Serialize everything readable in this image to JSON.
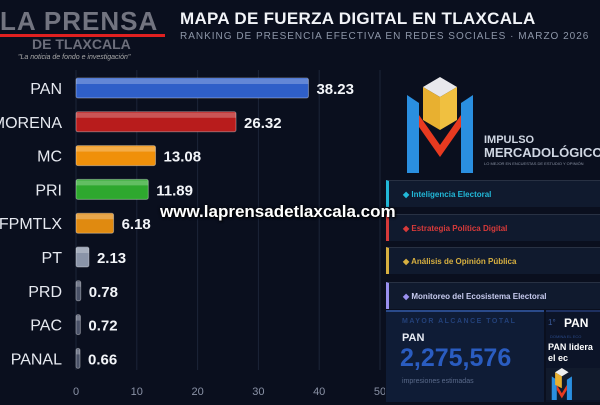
{
  "header": {
    "title": "MAPA DE FUERZA DIGITAL EN TLAXCALA",
    "subtitle": "RANKING DE PRESENCIA EFECTIVA EN REDES SOCIALES · MARZO 2026"
  },
  "watermark": {
    "brand": "LA PRENSA",
    "brand2": "DE TLAXCALA",
    "tagline": "\"La noticia de fondo e investigación\"",
    "site": "www.laprensadetlaxcala.com"
  },
  "logo": {
    "line1": "IMPULSO",
    "line2": "MERCADOLÓGICO",
    "tagline": "LO MEJOR EN ENCUESTAS DE ESTUDIO Y OPINIÓN"
  },
  "services": [
    {
      "label": "Inteligencia Electoral",
      "color": "#22b8d8"
    },
    {
      "label": "Estrategia Política Digital",
      "color": "#d83a3a"
    },
    {
      "label": "Análisis de Opinión Pública",
      "color": "#d8b040"
    },
    {
      "label": "Monitoreo del Ecosistema Electoral",
      "color": "#9a90f0"
    }
  ],
  "kpi": {
    "label": "MAYOR ALCANCE TOTAL",
    "party": "PAN",
    "value": "2,275,576",
    "unit": "impresiones estimadas"
  },
  "leader": {
    "rank": "1°",
    "party": "PAN",
    "line1": "DOMINA EL ECO",
    "line2": "PAN lidera el ec"
  },
  "chart_data": {
    "type": "bar",
    "orientation": "horizontal",
    "categories": [
      "PAN",
      "MORENA",
      "MC",
      "PRI",
      "FPMTLX",
      "PT",
      "PRD",
      "PAC",
      "PANAL"
    ],
    "values": [
      38.23,
      26.32,
      13.08,
      11.89,
      6.18,
      2.13,
      0.78,
      0.72,
      0.66
    ],
    "labels": [
      "38.23",
      "26.32",
      "13.08",
      "11.89",
      "6.18",
      "2.13",
      "0.78",
      "0.72",
      "0.66"
    ],
    "colors": [
      "#2f5fc8",
      "#b81c1c",
      "#f0900a",
      "#2ea82e",
      "#e08a10",
      "#8a94a8",
      "#4a5268",
      "#4a5268",
      "#4a5268"
    ],
    "xlim": [
      0,
      50
    ],
    "xticks": [
      "0",
      "10",
      "20",
      "30",
      "40",
      "50"
    ],
    "grid": true
  }
}
